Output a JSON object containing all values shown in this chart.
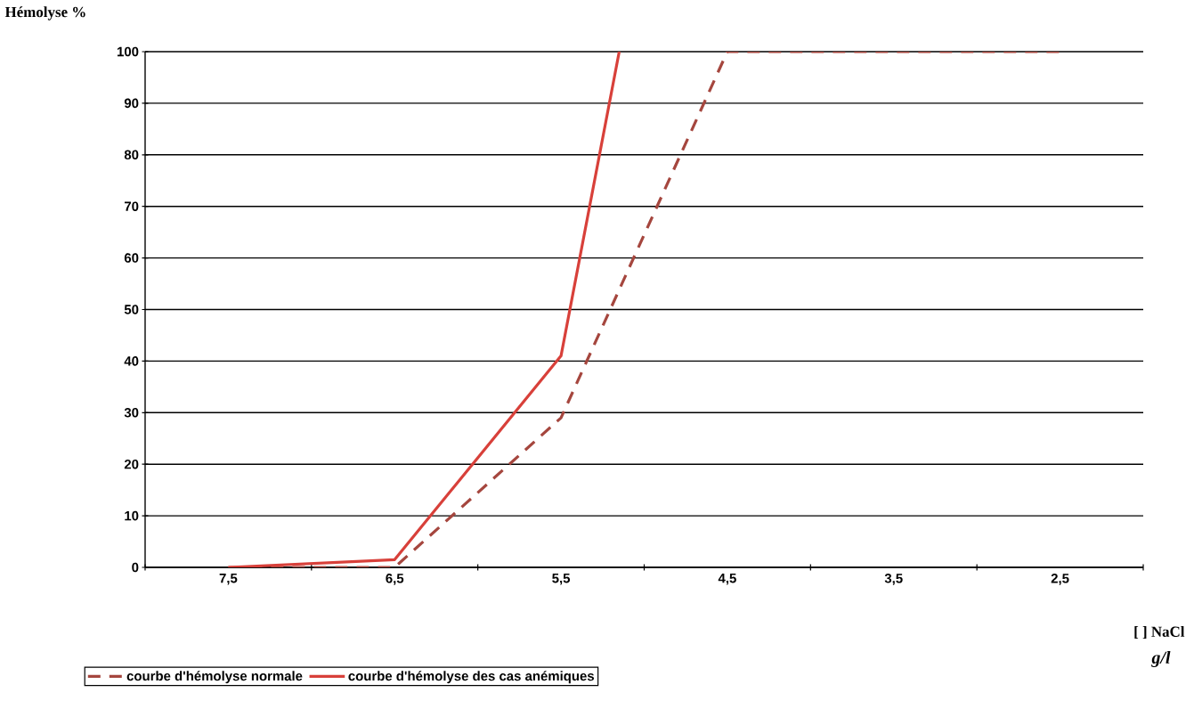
{
  "chart_data": {
    "type": "line",
    "xlabel": "[ ] NaCl",
    "ylabel": "Hémolyse %",
    "annotations": [
      "g/l"
    ],
    "xlim": [
      8,
      2
    ],
    "xticks": [
      {
        "value": 8,
        "label": null
      },
      {
        "value": 7.5,
        "label": "7,5"
      },
      {
        "value": 7,
        "label": null
      },
      {
        "value": 6.5,
        "label": "6,5"
      },
      {
        "value": 6,
        "label": null
      },
      {
        "value": 5.5,
        "label": "5,5"
      },
      {
        "value": 5,
        "label": null
      },
      {
        "value": 4.5,
        "label": "4,5"
      },
      {
        "value": 4,
        "label": null
      },
      {
        "value": 3.5,
        "label": "3,5"
      },
      {
        "value": 3,
        "label": null
      },
      {
        "value": 2.5,
        "label": "2,5"
      },
      {
        "value": 2,
        "label": null
      }
    ],
    "ylim": [
      0,
      100
    ],
    "yticks": [
      0,
      10,
      20,
      30,
      40,
      50,
      60,
      70,
      80,
      90,
      100
    ],
    "grid": "y",
    "legend": "bottom",
    "series": [
      {
        "name": "courbe d'hémolyse normale",
        "color": "#a5463e",
        "line_style": "dashed",
        "x": [
          7.5,
          6.5,
          5.5,
          4.5,
          2.5
        ],
        "values": [
          0,
          0,
          29,
          100,
          100
        ]
      },
      {
        "name": "courbe d'hémolyse des cas anémiques",
        "color": "#d8403a",
        "line_style": "solid",
        "x": [
          7.5,
          6.5,
          5.5,
          5.15
        ],
        "values": [
          0,
          1.5,
          41,
          100
        ]
      }
    ]
  }
}
